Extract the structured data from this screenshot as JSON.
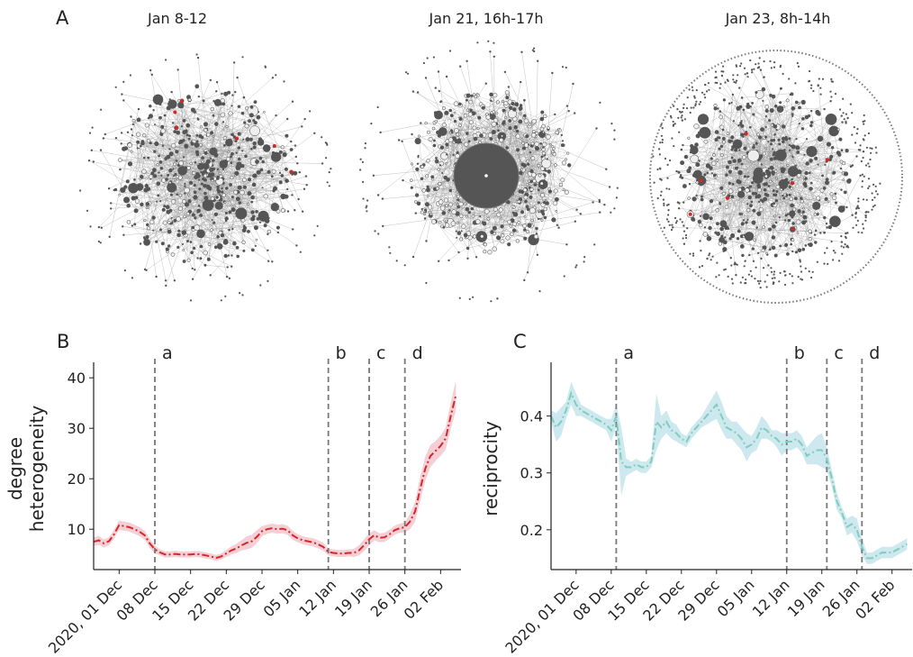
{
  "panel_labels": {
    "a": "A",
    "b": "B",
    "c": "C"
  },
  "networks": [
    {
      "title": "Jan 8-12",
      "style": "dense",
      "bridge_color": "#d62728"
    },
    {
      "title": "Jan 21, 16h-17h",
      "style": "hub",
      "bridge_color": "#d62728"
    },
    {
      "title": "Jan 23, 8h-14h",
      "style": "ring",
      "bridge_color": "#d62728"
    }
  ],
  "colors": {
    "node": "#555555",
    "edge": "#9a9a9a",
    "light_node": "#eeeeee",
    "event_line": "#777777"
  },
  "chart_data": [
    {
      "type": "line",
      "ylabel": [
        "degree",
        "heterogeneity"
      ],
      "x_ticks": [
        "2020, 01 Dec",
        "08 Dec",
        "15 Dec",
        "22 Dec",
        "29 Dec",
        "05 Jan",
        "12 Jan",
        "19 Jan",
        "26 Jan",
        "02 Feb"
      ],
      "x_tick_days": [
        5,
        12,
        19,
        26,
        33,
        40,
        47,
        54,
        61,
        68
      ],
      "xlim": [
        0,
        72
      ],
      "ylim": [
        2,
        42
      ],
      "y_ticks": [
        10,
        20,
        30,
        40
      ],
      "color": "#d62728",
      "band_color": "#f2c7cf",
      "line_style": "dash-dot",
      "events": [
        {
          "label": "a",
          "x": 12
        },
        {
          "label": "b",
          "x": 46
        },
        {
          "label": "c",
          "x": 54
        },
        {
          "label": "d",
          "x": 61
        }
      ],
      "x": [
        0,
        1,
        2,
        3,
        4,
        5,
        6,
        7,
        8,
        9,
        10,
        11,
        12,
        13,
        14,
        15,
        16,
        17,
        18,
        19,
        20,
        21,
        22,
        23,
        24,
        25,
        26,
        27,
        28,
        29,
        30,
        31,
        32,
        33,
        34,
        35,
        36,
        37,
        38,
        39,
        40,
        41,
        42,
        43,
        44,
        45,
        46,
        47,
        48,
        49,
        50,
        51,
        52,
        53,
        54,
        55,
        56,
        57,
        58,
        59,
        60,
        61,
        62,
        63,
        64,
        65,
        66,
        67,
        68,
        69,
        70,
        71
      ],
      "y": [
        7.5,
        7.8,
        7.2,
        7.6,
        9.0,
        10.8,
        10.6,
        10.4,
        10.0,
        9.5,
        8.8,
        7.2,
        6.0,
        5.4,
        5.0,
        5.0,
        5.1,
        5.0,
        5.0,
        5.0,
        5.1,
        5.0,
        4.8,
        4.6,
        4.3,
        4.6,
        5.2,
        5.8,
        6.2,
        6.8,
        7.3,
        7.6,
        8.5,
        9.6,
        10.0,
        10.2,
        10.0,
        10.1,
        9.8,
        8.8,
        8.2,
        7.8,
        7.6,
        7.4,
        7.0,
        6.5,
        5.5,
        5.3,
        5.2,
        5.2,
        5.3,
        5.3,
        5.8,
        6.8,
        8.0,
        8.8,
        8.3,
        8.4,
        9.0,
        9.8,
        10.2,
        10.4,
        11.5,
        13.5,
        18.0,
        22.0,
        24.5,
        25.5,
        26.5,
        28.0,
        32.5,
        36.5
      ],
      "band": [
        0.8,
        0.9,
        0.8,
        0.8,
        0.9,
        0.9,
        0.9,
        0.9,
        0.9,
        0.9,
        0.9,
        0.9,
        0.8,
        0.6,
        0.6,
        0.6,
        0.6,
        0.6,
        0.6,
        0.6,
        0.6,
        0.6,
        0.6,
        0.6,
        0.6,
        0.6,
        0.7,
        0.8,
        0.9,
        1.0,
        1.3,
        1.3,
        1.3,
        1.0,
        0.9,
        0.9,
        0.9,
        0.9,
        0.9,
        0.9,
        0.8,
        0.8,
        0.8,
        0.8,
        0.8,
        0.8,
        0.7,
        0.7,
        0.7,
        0.7,
        0.7,
        0.8,
        1.0,
        1.2,
        1.2,
        1.0,
        0.9,
        0.9,
        0.9,
        0.9,
        0.9,
        1.0,
        1.5,
        2.0,
        2.4,
        2.4,
        2.2,
        2.0,
        2.0,
        2.2,
        2.6,
        3.0
      ]
    },
    {
      "type": "line",
      "ylabel": [
        "reciprocity"
      ],
      "x_ticks": [
        "2020, 01 Dec",
        "08 Dec",
        "15 Dec",
        "22 Dec",
        "29 Dec",
        "05 Jan",
        "12 Jan",
        "19 Jan",
        "26 Jan",
        "02 Feb"
      ],
      "x_tick_days": [
        5,
        12,
        19,
        26,
        33,
        40,
        47,
        54,
        61,
        68
      ],
      "xlim": [
        0,
        72
      ],
      "ylim": [
        0.13,
        0.485
      ],
      "y_ticks": [
        0.2,
        0.3,
        0.4
      ],
      "color": "#7fcdbb",
      "band_color": "#c6e4ec",
      "line_style": "dash-dot",
      "events": [
        {
          "label": "a",
          "x": 13
        },
        {
          "label": "b",
          "x": 47
        },
        {
          "label": "c",
          "x": 55
        },
        {
          "label": "d",
          "x": 62
        }
      ],
      "x": [
        0,
        1,
        2,
        3,
        4,
        5,
        6,
        7,
        8,
        9,
        10,
        11,
        12,
        13,
        14,
        15,
        16,
        17,
        18,
        19,
        20,
        21,
        22,
        23,
        24,
        25,
        26,
        27,
        28,
        29,
        30,
        31,
        32,
        33,
        34,
        35,
        36,
        37,
        38,
        39,
        40,
        41,
        42,
        43,
        44,
        45,
        46,
        47,
        48,
        49,
        50,
        51,
        52,
        53,
        54,
        55,
        56,
        57,
        58,
        59,
        60,
        61,
        62,
        63,
        64,
        65,
        66,
        67,
        68,
        69,
        70,
        71
      ],
      "y": [
        0.4,
        0.38,
        0.39,
        0.41,
        0.44,
        0.42,
        0.41,
        0.405,
        0.4,
        0.395,
        0.39,
        0.385,
        0.375,
        0.4,
        0.32,
        0.31,
        0.31,
        0.315,
        0.31,
        0.31,
        0.32,
        0.39,
        0.38,
        0.39,
        0.375,
        0.37,
        0.36,
        0.355,
        0.37,
        0.38,
        0.39,
        0.4,
        0.41,
        0.42,
        0.4,
        0.38,
        0.375,
        0.37,
        0.36,
        0.345,
        0.35,
        0.36,
        0.38,
        0.375,
        0.365,
        0.36,
        0.35,
        0.355,
        0.355,
        0.36,
        0.35,
        0.33,
        0.335,
        0.34,
        0.34,
        0.325,
        0.29,
        0.25,
        0.23,
        0.205,
        0.21,
        0.2,
        0.17,
        0.15,
        0.15,
        0.155,
        0.16,
        0.16,
        0.16,
        0.165,
        0.17,
        0.175
      ],
      "band": [
        0.01,
        0.025,
        0.025,
        0.015,
        0.02,
        0.02,
        0.01,
        0.01,
        0.01,
        0.01,
        0.01,
        0.01,
        0.02,
        0.02,
        0.06,
        0.015,
        0.01,
        0.01,
        0.01,
        0.01,
        0.01,
        0.05,
        0.02,
        0.02,
        0.015,
        0.015,
        0.01,
        0.01,
        0.01,
        0.01,
        0.01,
        0.015,
        0.02,
        0.025,
        0.025,
        0.02,
        0.015,
        0.02,
        0.02,
        0.025,
        0.015,
        0.02,
        0.02,
        0.015,
        0.01,
        0.015,
        0.02,
        0.015,
        0.015,
        0.015,
        0.015,
        0.015,
        0.02,
        0.025,
        0.03,
        0.02,
        0.015,
        0.015,
        0.01,
        0.015,
        0.015,
        0.02,
        0.015,
        0.01,
        0.01,
        0.01,
        0.01,
        0.01,
        0.01,
        0.01,
        0.01,
        0.01
      ]
    }
  ]
}
